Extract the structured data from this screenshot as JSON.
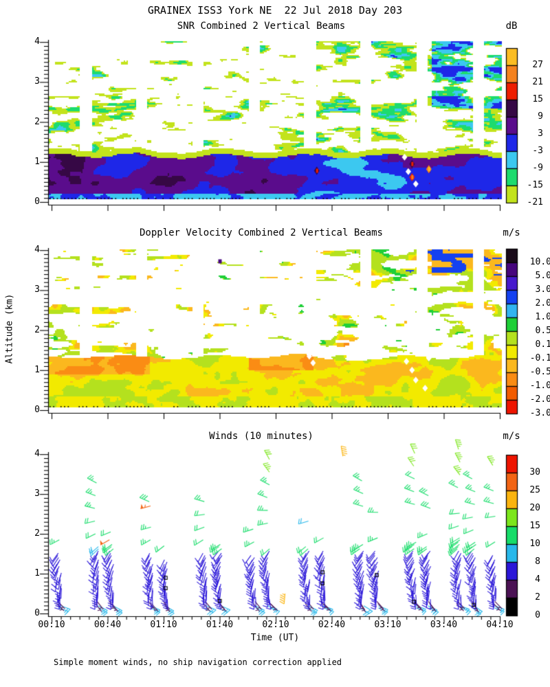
{
  "figure": {
    "title": "GRAINEX ISS3 York NE  22 Jul 2018 Day 203",
    "x_label": "Time (UT)",
    "y_label": "Altitude (km)",
    "caption": "Simple moment winds, no ship navigation correction applied",
    "background": "#ffffff"
  },
  "chart_data": [
    {
      "type": "heatmap",
      "id": "snr",
      "title": "SNR Combined 2 Vertical Beams",
      "x_label": "Time (UT)",
      "y_label": "Altitude (km)",
      "x_range_minutes": [
        10,
        250
      ],
      "y_range_km": [
        0,
        4
      ],
      "x_tick_labels": [
        "00:10",
        "00:40",
        "01:10",
        "01:40",
        "02:10",
        "02:40",
        "03:10",
        "03:40",
        "04:10"
      ],
      "y_tick_labels": [
        "0",
        "1",
        "2",
        "3",
        "4"
      ],
      "colorbar": {
        "units": "dB",
        "labels_top_to_bottom": [
          "27",
          "21",
          "15",
          "9",
          "3",
          "-3",
          "-9",
          "-15",
          "-21"
        ],
        "boundaries_low_to_high": [
          -21,
          -15,
          -9,
          -3,
          3,
          9,
          15,
          21,
          27,
          33
        ],
        "colors_low_to_high": [
          "#c3e31c",
          "#1ddb6e",
          "#3cc8f0",
          "#1e27e8",
          "#5a0c8c",
          "#360845",
          "#ee1e00",
          "#f5821e",
          "#fbbd23"
        ]
      },
      "structure": {
        "boundary_layer_top_km": 1.35,
        "boundary_layer_db_range": [
          -11,
          14.5
        ],
        "rim_db_range": [
          -20,
          -15
        ],
        "upper_scatter_db_range": [
          -21,
          -4
        ],
        "gap_start_minutes": [
          25,
          55,
          85,
          115,
          145,
          175,
          205,
          235
        ],
        "gap_width_minutes": 6,
        "hot_spots": [
          {
            "t": 152,
            "h": 0.78,
            "db": 17
          },
          {
            "t": 203,
            "h": 0.62,
            "db": 23
          },
          {
            "t": 203,
            "h": 0.95,
            "db": 19
          },
          {
            "t": 212,
            "h": 0.82,
            "db": 28
          }
        ],
        "white_diamonds": [
          {
            "t": 199,
            "h": 1.12
          },
          {
            "t": 203,
            "h": 1.38
          },
          {
            "t": 205,
            "h": 0.45
          },
          {
            "t": 201,
            "h": 0.76
          },
          {
            "t": 206,
            "h": 1.62
          }
        ],
        "dotted_baseline_km": 0.1
      }
    },
    {
      "type": "heatmap",
      "id": "doppler",
      "title": "Doppler Velocity Combined 2 Vertical Beams",
      "x_label": "Time (UT)",
      "y_label": "Altitude (km)",
      "x_range_minutes": [
        10,
        250
      ],
      "y_range_km": [
        0,
        4
      ],
      "x_tick_labels": [
        "00:10",
        "00:40",
        "01:10",
        "01:40",
        "02:10",
        "02:40",
        "03:10",
        "03:40",
        "04:10"
      ],
      "y_tick_labels": [
        "0",
        "1",
        "2",
        "3",
        "4"
      ],
      "colorbar": {
        "units": "m/s",
        "labels_top_to_bottom": [
          "10.0",
          "5.0",
          "3.0",
          "2.0",
          "1.0",
          "0.5",
          "0.1",
          "-0.1",
          "-0.5",
          "-1.0",
          "-2.0",
          "-3.0"
        ],
        "boundaries_low_to_high": [
          -3,
          -2,
          -1,
          -0.5,
          -0.1,
          0.1,
          0.5,
          1,
          2,
          3,
          5,
          10,
          13
        ],
        "colors_low_to_high": [
          "#ee1400",
          "#f25c00",
          "#fa8c14",
          "#fbb81e",
          "#f2ea00",
          "#b4e11e",
          "#1ecf37",
          "#32b4f0",
          "#1441f0",
          "#4619cd",
          "#46057d",
          "#190a19"
        ]
      },
      "structure": {
        "boundary_layer_top_km": 1.35,
        "boundary_layer_ms_range": [
          -2.2,
          0.9
        ],
        "upper_scatter_ms_range": [
          -2.5,
          3.4
        ],
        "gap_start_minutes": [
          25,
          55,
          85,
          115,
          145,
          175,
          205,
          235
        ],
        "gap_width_minutes": 6,
        "purple_dot": {
          "t": 100,
          "h": 3.72,
          "ms": 6
        },
        "white_diamonds": [
          {
            "t": 200,
            "h": 1.22
          },
          {
            "t": 203,
            "h": 1.0
          },
          {
            "t": 205,
            "h": 0.75
          },
          {
            "t": 207,
            "h": 1.45
          },
          {
            "t": 210,
            "h": 0.55
          },
          {
            "t": 212,
            "h": 1.3
          },
          {
            "t": 148,
            "h": 1.35
          },
          {
            "t": 150,
            "h": 1.18
          }
        ],
        "dotted_baseline_km": 0.1
      }
    },
    {
      "type": "wind_barbs",
      "id": "winds",
      "title": "Winds (10 minutes)",
      "x_label": "Time (UT)",
      "y_label": "Altitude (km)",
      "x_range_minutes": [
        10,
        250
      ],
      "y_range_km": [
        0,
        4
      ],
      "x_tick_labels": [
        "00:10",
        "00:40",
        "01:10",
        "01:40",
        "02:10",
        "02:40",
        "03:10",
        "03:40",
        "04:10"
      ],
      "y_tick_labels": [
        "0",
        "1",
        "2",
        "3",
        "4"
      ],
      "colorbar": {
        "units": "m/s",
        "labels_top_to_bottom": [
          "30",
          "25",
          "20",
          "15",
          "10",
          "8",
          "4",
          "2",
          "0"
        ],
        "boundaries_low_to_high": [
          0,
          2,
          4,
          8,
          10,
          15,
          20,
          25,
          30,
          35
        ],
        "colors_low_to_high": [
          "#000000",
          "#4b1254",
          "#2b17d8",
          "#28b8ea",
          "#17dc69",
          "#7ce61c",
          "#fbb40f",
          "#f26414",
          "#ee1400"
        ]
      },
      "structure": {
        "columns": [
          {
            "t": 14,
            "dense_top": 1.55,
            "upper_top": 2.0
          },
          {
            "t": 34,
            "dense_top": 1.7,
            "upper_top": 4.05
          },
          {
            "t": 42,
            "dense_top": 1.75,
            "upper_top": 2.2
          },
          {
            "t": 63,
            "dense_top": 1.55,
            "upper_top": 2.9
          },
          {
            "t": 71,
            "dense_top": 1.4,
            "upper_top": 1.9
          },
          {
            "t": 92,
            "dense_top": 1.55,
            "upper_top": 4.05
          },
          {
            "t": 100,
            "dense_top": 1.75,
            "upper_top": 2.2
          },
          {
            "t": 118,
            "dense_top": 1.5,
            "upper_top": 2.3
          },
          {
            "t": 126,
            "dense_top": 1.65,
            "upper_top": 4.15
          },
          {
            "t": 147,
            "dense_top": 1.7,
            "upper_top": 3.0
          },
          {
            "t": 155,
            "dense_top": 1.6,
            "upper_top": 2.4
          },
          {
            "t": 176,
            "dense_top": 1.75,
            "upper_top": 4.2
          },
          {
            "t": 184,
            "dense_top": 1.6,
            "upper_top": 2.6
          },
          {
            "t": 204,
            "dense_top": 1.8,
            "upper_top": 4.1
          },
          {
            "t": 212,
            "dense_top": 1.7,
            "upper_top": 3.2
          },
          {
            "t": 228,
            "dense_top": 1.9,
            "upper_top": 4.2
          },
          {
            "t": 236,
            "dense_top": 1.8,
            "upper_top": 3.4
          },
          {
            "t": 247,
            "dense_top": 1.5,
            "upper_top": 4.1
          }
        ],
        "dense_spacing_km": 0.055,
        "upper_spacing_km": 0.32,
        "highlight_barbs": [
          {
            "t": 41,
            "h": 1.85,
            "spd": 26,
            "dir": 240
          },
          {
            "t": 63,
            "h": 2.7,
            "spd": 27,
            "dir": 255
          },
          {
            "t": 135,
            "h": 0.5,
            "spd": 22,
            "dir": 185
          },
          {
            "t": 166,
            "h": 3.95,
            "spd": 22,
            "dir": 350
          }
        ],
        "missing_markers": [
          {
            "t": 71,
            "h": 0.9
          },
          {
            "t": 71,
            "h": 0.64
          },
          {
            "t": 100,
            "h": 0.32
          },
          {
            "t": 155,
            "h": 1.04
          },
          {
            "t": 155,
            "h": 0.76
          },
          {
            "t": 184,
            "h": 0.97
          },
          {
            "t": 204,
            "h": 0.3
          },
          {
            "t": 236,
            "h": 0.22
          }
        ]
      }
    }
  ]
}
